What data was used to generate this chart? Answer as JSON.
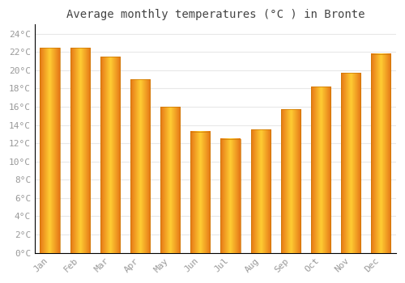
{
  "title": "Average monthly temperatures (°C ) in Bronte",
  "months": [
    "Jan",
    "Feb",
    "Mar",
    "Apr",
    "May",
    "Jun",
    "Jul",
    "Aug",
    "Sep",
    "Oct",
    "Nov",
    "Dec"
  ],
  "temperatures": [
    22.5,
    22.5,
    21.5,
    19.0,
    16.0,
    13.3,
    12.5,
    13.5,
    15.7,
    18.2,
    19.7,
    21.8
  ],
  "bar_color_light": "#FFD54F",
  "bar_color_main": "#FFA726",
  "bar_color_dark": "#E65100",
  "background_color": "#FFFFFF",
  "grid_color": "#E8E8E8",
  "tick_label_color": "#999999",
  "title_color": "#444444",
  "ylim": [
    0,
    25
  ],
  "yticks": [
    0,
    2,
    4,
    6,
    8,
    10,
    12,
    14,
    16,
    18,
    20,
    22,
    24
  ],
  "ytick_labels": [
    "0°C",
    "2°C",
    "4°C",
    "6°C",
    "8°C",
    "10°C",
    "12°C",
    "14°C",
    "16°C",
    "18°C",
    "20°C",
    "22°C",
    "24°C"
  ],
  "title_fontsize": 10,
  "tick_fontsize": 8,
  "font_family": "monospace",
  "bar_width": 0.65
}
